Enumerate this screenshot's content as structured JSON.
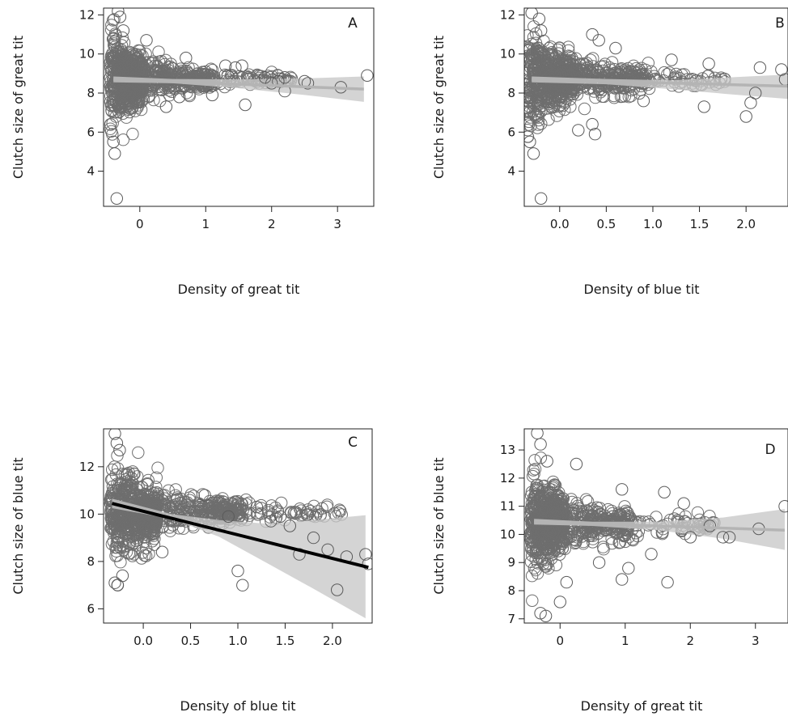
{
  "chart_data": [
    {
      "type": "scatter",
      "panel_label": "A",
      "xlabel": "Density of great tit",
      "ylabel": "Clutch size of great tit",
      "xlim": [
        -0.55,
        3.55
      ],
      "ylim": [
        2.2,
        12.35
      ],
      "xticks": [
        0,
        1,
        2,
        3
      ],
      "xtick_labels": [
        "0",
        "1",
        "2",
        "3"
      ],
      "yticks": [
        4,
        6,
        8,
        10,
        12
      ],
      "ytick_labels": [
        "4",
        "6",
        "8",
        "10",
        "12"
      ],
      "trend": {
        "x": [
          -0.4,
          3.4
        ],
        "y": [
          8.7,
          8.2
        ],
        "color": "#b4b4b4"
      },
      "ci_band": {
        "x": [
          -0.4,
          0.5,
          1.5,
          2.5,
          3.4
        ],
        "lower": [
          8.55,
          8.5,
          8.25,
          7.9,
          7.55
        ],
        "upper": [
          8.85,
          8.72,
          8.7,
          8.75,
          8.85
        ]
      },
      "cloud": {
        "center": 8.7,
        "spread": [
          [
            -0.45,
            3.6
          ],
          [
            -0.2,
            1.8
          ],
          [
            0.3,
            1.0
          ],
          [
            1.0,
            0.55
          ],
          [
            1.8,
            0.4
          ],
          [
            2.4,
            0.3
          ]
        ]
      },
      "points": [
        {
          "x": -0.35,
          "y": 2.6
        },
        {
          "x": -0.38,
          "y": 4.9
        },
        {
          "x": -0.4,
          "y": 5.5
        },
        {
          "x": -0.33,
          "y": 12.2
        },
        {
          "x": -0.3,
          "y": 11.9
        },
        {
          "x": -0.25,
          "y": 11.2
        },
        {
          "x": 0.1,
          "y": 10.7
        },
        {
          "x": 0.7,
          "y": 9.8
        },
        {
          "x": 1.3,
          "y": 9.4
        },
        {
          "x": 1.45,
          "y": 9.3
        },
        {
          "x": 1.55,
          "y": 9.4
        },
        {
          "x": 1.6,
          "y": 7.4
        },
        {
          "x": 1.9,
          "y": 8.8
        },
        {
          "x": 2.0,
          "y": 8.5
        },
        {
          "x": 2.1,
          "y": 8.6
        },
        {
          "x": 2.2,
          "y": 8.8
        },
        {
          "x": 2.2,
          "y": 8.1
        },
        {
          "x": 2.5,
          "y": 8.6
        },
        {
          "x": 2.55,
          "y": 8.5
        },
        {
          "x": 3.05,
          "y": 8.3
        },
        {
          "x": 3.45,
          "y": 8.9
        },
        {
          "x": 0.6,
          "y": 7.8
        },
        {
          "x": 1.1,
          "y": 7.9
        },
        {
          "x": 0.4,
          "y": 7.3
        }
      ]
    },
    {
      "type": "scatter",
      "panel_label": "B",
      "xlabel": "Density of blue tit",
      "ylabel": "Clutch size of great tit",
      "xlim": [
        -0.38,
        2.45
      ],
      "ylim": [
        2.2,
        12.35
      ],
      "xticks": [
        0,
        0.5,
        1,
        1.5,
        2
      ],
      "xtick_labels": [
        "0.0",
        "0.5",
        "1.0",
        "1.5",
        "2.0"
      ],
      "yticks": [
        4,
        6,
        8,
        10,
        12
      ],
      "ytick_labels": [
        "4",
        "6",
        "8",
        "10",
        "12"
      ],
      "trend": {
        "x": [
          -0.3,
          2.45
        ],
        "y": [
          8.7,
          8.35
        ],
        "color": "#b4b4b4"
      },
      "ci_band": {
        "x": [
          -0.3,
          0.5,
          1.2,
          1.8,
          2.45
        ],
        "lower": [
          8.55,
          8.45,
          8.2,
          7.95,
          7.7
        ],
        "upper": [
          8.85,
          8.72,
          8.65,
          8.8,
          8.95
        ]
      },
      "cloud": {
        "center": 8.7,
        "spread": [
          [
            -0.35,
            3.3
          ],
          [
            -0.1,
            1.6
          ],
          [
            0.3,
            1.1
          ],
          [
            0.8,
            0.8
          ],
          [
            1.4,
            0.55
          ],
          [
            1.8,
            0.35
          ]
        ]
      },
      "points": [
        {
          "x": -0.2,
          "y": 2.6
        },
        {
          "x": -0.28,
          "y": 4.9
        },
        {
          "x": -0.32,
          "y": 5.5
        },
        {
          "x": -0.3,
          "y": 12.1
        },
        {
          "x": -0.22,
          "y": 11.8
        },
        {
          "x": -0.2,
          "y": 11.2
        },
        {
          "x": 0.35,
          "y": 11.0
        },
        {
          "x": 0.42,
          "y": 10.7
        },
        {
          "x": 0.35,
          "y": 6.4
        },
        {
          "x": 0.38,
          "y": 5.9
        },
        {
          "x": 0.2,
          "y": 6.1
        },
        {
          "x": 1.6,
          "y": 9.5
        },
        {
          "x": 1.55,
          "y": 7.3
        },
        {
          "x": 2.0,
          "y": 6.8
        },
        {
          "x": 2.05,
          "y": 7.5
        },
        {
          "x": 2.1,
          "y": 8.0
        },
        {
          "x": 2.15,
          "y": 9.3
        },
        {
          "x": 2.38,
          "y": 9.2
        },
        {
          "x": 2.42,
          "y": 8.7
        },
        {
          "x": 1.2,
          "y": 9.7
        },
        {
          "x": 0.9,
          "y": 7.6
        },
        {
          "x": 0.6,
          "y": 10.3
        }
      ]
    },
    {
      "type": "scatter",
      "panel_label": "C",
      "xlabel": "Density of blue tit",
      "ylabel": "Clutch size of blue tit",
      "xlim": [
        -0.42,
        2.42
      ],
      "ylim": [
        5.4,
        13.6
      ],
      "xticks": [
        0,
        0.5,
        1,
        1.5,
        2
      ],
      "xtick_labels": [
        "0.0",
        "0.5",
        "1.0",
        "1.5",
        "2.0"
      ],
      "yticks": [
        6,
        8,
        10,
        12
      ],
      "ytick_labels": [
        "6",
        "8",
        "10",
        "12"
      ],
      "trend": {
        "x": [
          -0.33,
          2.38
        ],
        "y": [
          10.45,
          7.75
        ],
        "color": "#000000"
      },
      "ci_band": {
        "x": [
          -0.33,
          0.3,
          0.8,
          1.3,
          1.8,
          2.35
        ],
        "lower": [
          10.25,
          9.8,
          9.05,
          7.95,
          6.85,
          5.6
        ],
        "upper": [
          10.65,
          10.0,
          9.75,
          9.6,
          9.75,
          9.95
        ]
      },
      "cloud": {
        "center": 10.1,
        "spread": [
          [
            -0.35,
            2.6
          ],
          [
            0.0,
            1.5
          ],
          [
            0.4,
            0.8
          ],
          [
            0.9,
            0.6
          ],
          [
            1.5,
            0.45
          ],
          [
            2.1,
            0.3
          ]
        ]
      },
      "points": [
        {
          "x": -0.3,
          "y": 7.1
        },
        {
          "x": -0.27,
          "y": 7.0
        },
        {
          "x": -0.22,
          "y": 7.4
        },
        {
          "x": -0.3,
          "y": 13.4
        },
        {
          "x": -0.28,
          "y": 13.0
        },
        {
          "x": -0.25,
          "y": 12.7
        },
        {
          "x": 0.65,
          "y": 10.8
        },
        {
          "x": 1.0,
          "y": 7.6
        },
        {
          "x": 1.05,
          "y": 7.0
        },
        {
          "x": 1.2,
          "y": 10.3
        },
        {
          "x": 1.35,
          "y": 9.7
        },
        {
          "x": 1.55,
          "y": 9.5
        },
        {
          "x": 1.65,
          "y": 8.3
        },
        {
          "x": 1.8,
          "y": 9.0
        },
        {
          "x": 1.95,
          "y": 8.5
        },
        {
          "x": 2.05,
          "y": 6.8
        },
        {
          "x": 2.15,
          "y": 8.2
        },
        {
          "x": 2.35,
          "y": 8.3
        },
        {
          "x": 2.38,
          "y": 7.9
        },
        {
          "x": 0.2,
          "y": 8.4
        },
        {
          "x": 1.45,
          "y": 9.9
        },
        {
          "x": 0.9,
          "y": 9.9
        }
      ]
    },
    {
      "type": "scatter",
      "panel_label": "D",
      "xlabel": "Density of great tit",
      "ylabel": "Clutch size of blue tit",
      "xlim": [
        -0.55,
        3.5
      ],
      "ylim": [
        6.85,
        13.75
      ],
      "xticks": [
        0,
        1,
        2,
        3
      ],
      "xtick_labels": [
        "0",
        "1",
        "2",
        "3"
      ],
      "yticks": [
        7,
        8,
        9,
        10,
        11,
        12,
        13
      ],
      "ytick_labels": [
        "7",
        "8",
        "9",
        "10",
        "11",
        "12",
        "13"
      ],
      "trend": {
        "x": [
          -0.4,
          3.45
        ],
        "y": [
          10.45,
          10.15
        ],
        "color": "#b4b4b4"
      },
      "ci_band": {
        "x": [
          -0.4,
          0.5,
          1.5,
          2.5,
          3.45
        ],
        "lower": [
          10.35,
          10.3,
          10.15,
          9.85,
          9.45
        ],
        "upper": [
          10.55,
          10.45,
          10.45,
          10.6,
          10.9
        ]
      },
      "cloud": {
        "center": 10.35,
        "spread": [
          [
            -0.45,
            2.2
          ],
          [
            -0.2,
            1.4
          ],
          [
            0.3,
            0.9
          ],
          [
            1.0,
            0.6
          ],
          [
            1.6,
            0.5
          ],
          [
            2.4,
            0.3
          ]
        ]
      },
      "points": [
        {
          "x": -0.3,
          "y": 7.2
        },
        {
          "x": -0.22,
          "y": 7.1
        },
        {
          "x": 0.0,
          "y": 7.6
        },
        {
          "x": 0.1,
          "y": 8.3
        },
        {
          "x": -0.35,
          "y": 13.6
        },
        {
          "x": -0.3,
          "y": 13.2
        },
        {
          "x": -0.2,
          "y": 12.6
        },
        {
          "x": 0.25,
          "y": 12.5
        },
        {
          "x": 0.95,
          "y": 11.6
        },
        {
          "x": 0.95,
          "y": 8.4
        },
        {
          "x": 1.05,
          "y": 8.8
        },
        {
          "x": 1.65,
          "y": 8.3
        },
        {
          "x": 1.6,
          "y": 11.5
        },
        {
          "x": 1.9,
          "y": 11.1
        },
        {
          "x": 2.0,
          "y": 9.9
        },
        {
          "x": 2.3,
          "y": 10.3
        },
        {
          "x": 2.5,
          "y": 9.9
        },
        {
          "x": 2.6,
          "y": 9.9
        },
        {
          "x": 3.05,
          "y": 10.2
        },
        {
          "x": 3.45,
          "y": 11.0
        },
        {
          "x": 1.4,
          "y": 9.3
        },
        {
          "x": 0.6,
          "y": 9.0
        }
      ]
    }
  ]
}
